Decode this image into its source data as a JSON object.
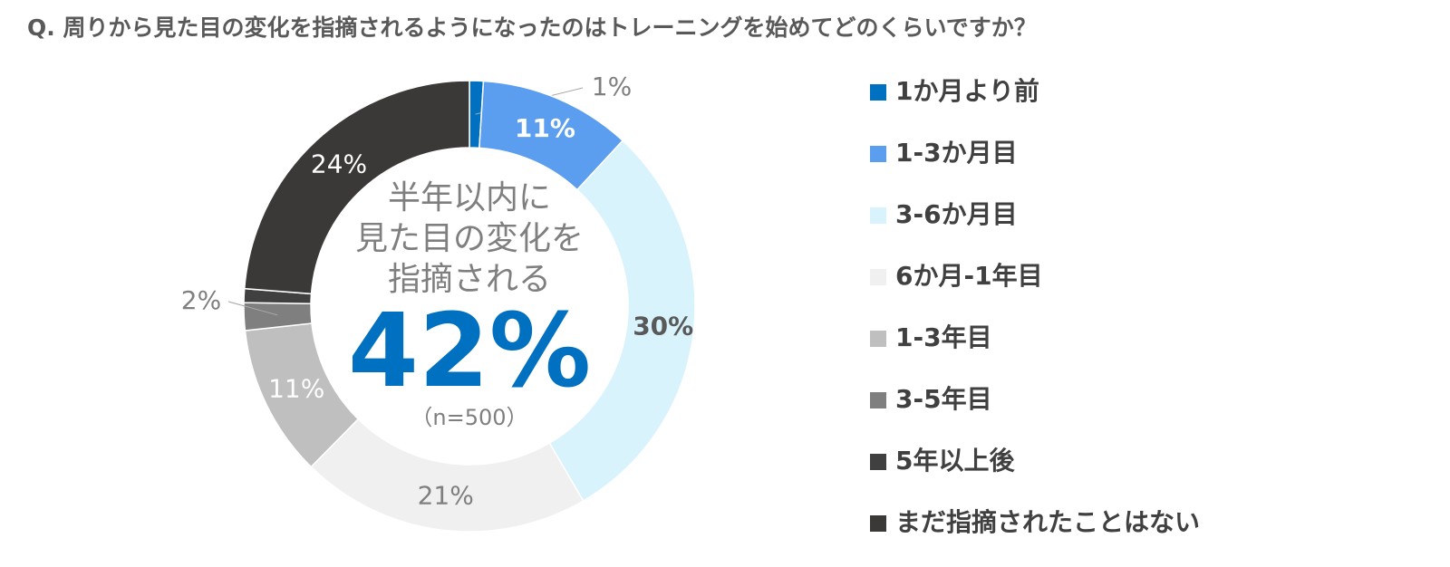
{
  "chart_data": {
    "type": "donut",
    "title": "Q.  周りから見た目の変化を指摘されるようになったのはトレーニングを始めてどのくらいですか？",
    "categories": [
      "1か月より前",
      "1-3か月目",
      "3-6か月目",
      "6か月-1年目",
      "1-3年目",
      "3-5年目",
      "5年以上後",
      "まだ指摘されたことはない"
    ],
    "values": [
      1,
      11,
      30,
      21,
      11,
      2,
      1,
      24
    ],
    "value_labels": [
      "1%",
      "11%",
      "30%",
      "21%",
      "11%",
      "2%",
      null,
      "24%"
    ],
    "colors": [
      "#0070c0",
      "#5b9def",
      "#d9f3fd",
      "#f0f0f0",
      "#bfbfbf",
      "#7f7f7f",
      "#404040",
      "#3b3838"
    ],
    "center_text": [
      "半年以内に",
      "見た目の変化を",
      "指摘される"
    ],
    "center_value": "42%",
    "center_note": "（n=500）",
    "legend": "right"
  }
}
